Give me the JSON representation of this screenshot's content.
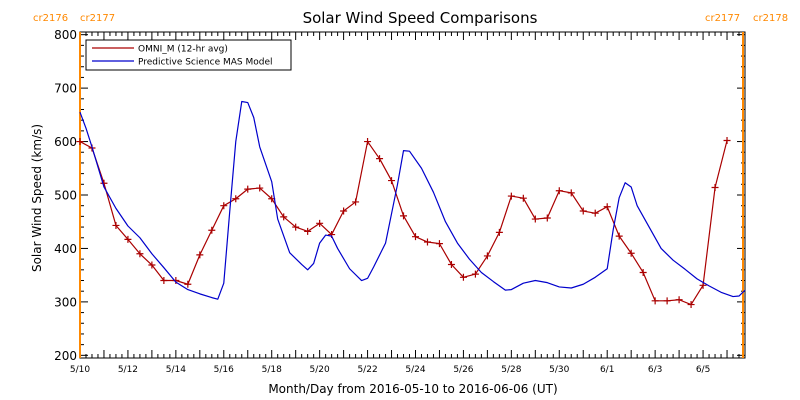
{
  "chart_data": {
    "type": "line",
    "title": "Solar Wind Speed Comparisons",
    "xlabel": "Month/Day from 2016-05-10 to 2016-06-06 (UT)",
    "ylabel": "Solar Wind Speed (km/s)",
    "ylim": [
      195,
      805
    ],
    "xlim": [
      "2016-05-10T00:00",
      "2016-06-06T18:00"
    ],
    "x_ticks": [
      "5/10",
      "5/12",
      "5/14",
      "5/16",
      "5/18",
      "5/20",
      "5/22",
      "5/24",
      "5/26",
      "5/28",
      "5/30",
      "6/1",
      "6/3",
      "6/5"
    ],
    "y_ticks": [
      200,
      300,
      400,
      500,
      600,
      700,
      800
    ],
    "grid": false,
    "legend": "top-left",
    "rotations": [
      {
        "left": "cr2176",
        "right": "cr2177",
        "at": "2016-05-10T00:00"
      },
      {
        "left": "cr2177",
        "right": "cr2178",
        "at": "2016-06-06T16:00"
      }
    ],
    "series": [
      {
        "name": "OMNI_M (12-hr avg)",
        "marker": "+",
        "points": [
          [
            "2016-05-10T00:00",
            600
          ],
          [
            "2016-05-10T12:00",
            588
          ],
          [
            "2016-05-11T00:00",
            522
          ],
          [
            "2016-05-11T12:00",
            443
          ],
          [
            "2016-05-12T00:00",
            417
          ],
          [
            "2016-05-12T12:00",
            390
          ],
          [
            "2016-05-13T00:00",
            369
          ],
          [
            "2016-05-13T12:00",
            340
          ],
          [
            "2016-05-14T00:00",
            340
          ],
          [
            "2016-05-14T12:00",
            333
          ],
          [
            "2016-05-15T00:00",
            388
          ],
          [
            "2016-05-15T12:00",
            434
          ],
          [
            "2016-05-16T00:00",
            480
          ],
          [
            "2016-05-16T12:00",
            493
          ],
          [
            "2016-05-17T00:00",
            511
          ],
          [
            "2016-05-17T12:00",
            513
          ],
          [
            "2016-05-18T00:00",
            493
          ],
          [
            "2016-05-18T12:00",
            459
          ],
          [
            "2016-05-19T00:00",
            440
          ],
          [
            "2016-05-19T12:00",
            432
          ],
          [
            "2016-05-20T00:00",
            447
          ],
          [
            "2016-05-20T12:00",
            426
          ],
          [
            "2016-05-21T00:00",
            470
          ],
          [
            "2016-05-21T12:00",
            487
          ],
          [
            "2016-05-22T00:00",
            600
          ],
          [
            "2016-05-22T12:00",
            568
          ],
          [
            "2016-05-23T00:00",
            527
          ],
          [
            "2016-05-23T12:00",
            461
          ],
          [
            "2016-05-24T00:00",
            422
          ],
          [
            "2016-05-24T12:00",
            412
          ],
          [
            "2016-05-25T00:00",
            409
          ],
          [
            "2016-05-25T12:00",
            370
          ],
          [
            "2016-05-26T00:00",
            346
          ],
          [
            "2016-05-26T12:00",
            352
          ],
          [
            "2016-05-27T00:00",
            386
          ],
          [
            "2016-05-27T12:00",
            430
          ],
          [
            "2016-05-28T00:00",
            498
          ],
          [
            "2016-05-28T12:00",
            494
          ],
          [
            "2016-05-29T00:00",
            455
          ],
          [
            "2016-05-29T12:00",
            457
          ],
          [
            "2016-05-30T00:00",
            508
          ],
          [
            "2016-05-30T12:00",
            504
          ],
          [
            "2016-05-31T00:00",
            470
          ],
          [
            "2016-05-31T12:00",
            466
          ],
          [
            "2016-06-01T00:00",
            478
          ],
          [
            "2016-06-01T12:00",
            423
          ],
          [
            "2016-06-02T00:00",
            391
          ],
          [
            "2016-06-02T12:00",
            355
          ],
          [
            "2016-06-03T00:00",
            302
          ],
          [
            "2016-06-03T12:00",
            302
          ],
          [
            "2016-06-04T00:00",
            304
          ],
          [
            "2016-06-04T12:00",
            295
          ],
          [
            "2016-06-05T00:00",
            331
          ],
          [
            "2016-06-05T12:00",
            514
          ],
          [
            "2016-06-06T00:00",
            602
          ]
        ]
      },
      {
        "name": "Predictive Science MAS Model",
        "marker": "none",
        "points": [
          [
            "2016-05-10T00:00",
            655
          ],
          [
            "2016-05-10T06:00",
            625
          ],
          [
            "2016-05-10T12:00",
            590
          ],
          [
            "2016-05-11T00:00",
            515
          ],
          [
            "2016-05-11T12:00",
            475
          ],
          [
            "2016-05-12T00:00",
            442
          ],
          [
            "2016-05-12T12:00",
            420
          ],
          [
            "2016-05-13T00:00",
            390
          ],
          [
            "2016-05-13T12:00",
            364
          ],
          [
            "2016-05-14T00:00",
            337
          ],
          [
            "2016-05-14T12:00",
            323
          ],
          [
            "2016-05-15T00:00",
            315
          ],
          [
            "2016-05-15T12:00",
            308
          ],
          [
            "2016-05-15T18:00",
            305
          ],
          [
            "2016-05-16T00:00",
            335
          ],
          [
            "2016-05-16T06:00",
            470
          ],
          [
            "2016-05-16T12:00",
            600
          ],
          [
            "2016-05-16T18:00",
            675
          ],
          [
            "2016-05-17T00:00",
            673
          ],
          [
            "2016-05-17T06:00",
            645
          ],
          [
            "2016-05-17T12:00",
            590
          ],
          [
            "2016-05-18T00:00",
            525
          ],
          [
            "2016-05-18T06:00",
            455
          ],
          [
            "2016-05-18T18:00",
            392
          ],
          [
            "2016-05-19T06:00",
            370
          ],
          [
            "2016-05-19T12:00",
            360
          ],
          [
            "2016-05-19T18:00",
            372
          ],
          [
            "2016-05-20T00:00",
            410
          ],
          [
            "2016-05-20T06:00",
            425
          ],
          [
            "2016-05-20T12:00",
            423
          ],
          [
            "2016-05-20T18:00",
            400
          ],
          [
            "2016-05-21T06:00",
            362
          ],
          [
            "2016-05-21T18:00",
            340
          ],
          [
            "2016-05-22T00:00",
            344
          ],
          [
            "2016-05-22T06:00",
            365
          ],
          [
            "2016-05-22T18:00",
            410
          ],
          [
            "2016-05-23T06:00",
            520
          ],
          [
            "2016-05-23T12:00",
            583
          ],
          [
            "2016-05-23T18:00",
            582
          ],
          [
            "2016-05-24T06:00",
            550
          ],
          [
            "2016-05-24T18:00",
            505
          ],
          [
            "2016-05-25T06:00",
            450
          ],
          [
            "2016-05-25T18:00",
            410
          ],
          [
            "2016-05-26T06:00",
            380
          ],
          [
            "2016-05-26T18:00",
            355
          ],
          [
            "2016-05-27T06:00",
            338
          ],
          [
            "2016-05-27T18:00",
            322
          ],
          [
            "2016-05-28T00:00",
            323
          ],
          [
            "2016-05-28T12:00",
            335
          ],
          [
            "2016-05-29T00:00",
            340
          ],
          [
            "2016-05-29T12:00",
            336
          ],
          [
            "2016-05-30T00:00",
            328
          ],
          [
            "2016-05-30T12:00",
            326
          ],
          [
            "2016-05-31T00:00",
            333
          ],
          [
            "2016-05-31T12:00",
            346
          ],
          [
            "2016-06-01T00:00",
            362
          ],
          [
            "2016-06-01T06:00",
            435
          ],
          [
            "2016-06-01T12:00",
            495
          ],
          [
            "2016-06-01T18:00",
            523
          ],
          [
            "2016-06-02T00:00",
            515
          ],
          [
            "2016-06-02T06:00",
            480
          ],
          [
            "2016-06-02T18:00",
            440
          ],
          [
            "2016-06-03T06:00",
            400
          ],
          [
            "2016-06-03T18:00",
            378
          ],
          [
            "2016-06-04T06:00",
            361
          ],
          [
            "2016-06-04T18:00",
            343
          ],
          [
            "2016-06-05T06:00",
            330
          ],
          [
            "2016-06-05T18:00",
            318
          ],
          [
            "2016-06-06T06:00",
            310
          ],
          [
            "2016-06-06T12:00",
            311
          ],
          [
            "2016-06-06T18:00",
            322
          ]
        ]
      }
    ]
  },
  "colors": {
    "omni": "#aa0000",
    "mas": "#0000cc",
    "carrington": "#ff8800",
    "axis": "#000000"
  }
}
